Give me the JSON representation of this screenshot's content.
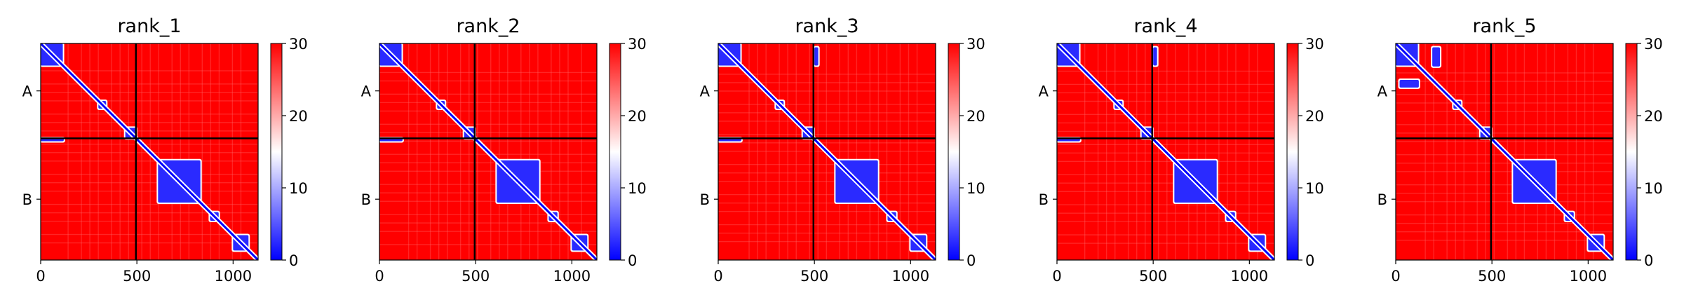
{
  "colors": {
    "low": "#0000ff",
    "mid": "#ffffff",
    "high": "#ff0000",
    "divider": "#000000"
  },
  "chart_data": [
    {
      "type": "heatmap",
      "title": "rank_1",
      "xlabel": "",
      "ylabel": "",
      "xlim": [
        0,
        1130
      ],
      "ylim": [
        1130,
        0
      ],
      "x_ticks": [
        "0",
        "500",
        "1000"
      ],
      "y_tick_labels": [
        "A",
        "B"
      ],
      "chains": [
        {
          "name": "A",
          "start": 0,
          "end": 495
        },
        {
          "name": "B",
          "start": 495,
          "end": 1130
        }
      ],
      "colorbar": {
        "min": 0,
        "max": 30,
        "ticks": [
          "0",
          "10",
          "20",
          "30"
        ]
      },
      "low_blocks": [
        {
          "x": [
            0,
            115
          ],
          "y": [
            0,
            115
          ]
        },
        {
          "x": [
            300,
            340
          ],
          "y": [
            300,
            340
          ]
        },
        {
          "x": [
            440,
            495
          ],
          "y": [
            440,
            495
          ]
        },
        {
          "x": [
            0,
            120
          ],
          "y": [
            495,
            510
          ]
        },
        {
          "x": [
            610,
            830
          ],
          "y": [
            610,
            830
          ]
        },
        {
          "x": [
            880,
            925
          ],
          "y": [
            880,
            925
          ]
        },
        {
          "x": [
            1000,
            1080
          ],
          "y": [
            1000,
            1080
          ]
        }
      ]
    },
    {
      "type": "heatmap",
      "title": "rank_2",
      "xlabel": "",
      "ylabel": "",
      "xlim": [
        0,
        1130
      ],
      "ylim": [
        1130,
        0
      ],
      "x_ticks": [
        "0",
        "500",
        "1000"
      ],
      "y_tick_labels": [
        "A",
        "B"
      ],
      "chains": [
        {
          "name": "A",
          "start": 0,
          "end": 495
        },
        {
          "name": "B",
          "start": 495,
          "end": 1130
        }
      ],
      "colorbar": {
        "min": 0,
        "max": 30,
        "ticks": [
          "0",
          "10",
          "20",
          "30"
        ]
      },
      "low_blocks": [
        {
          "x": [
            0,
            115
          ],
          "y": [
            0,
            115
          ]
        },
        {
          "x": [
            300,
            340
          ],
          "y": [
            300,
            340
          ]
        },
        {
          "x": [
            440,
            495
          ],
          "y": [
            440,
            495
          ]
        },
        {
          "x": [
            0,
            120
          ],
          "y": [
            495,
            510
          ]
        },
        {
          "x": [
            610,
            830
          ],
          "y": [
            610,
            830
          ]
        },
        {
          "x": [
            880,
            925
          ],
          "y": [
            880,
            925
          ]
        },
        {
          "x": [
            1000,
            1080
          ],
          "y": [
            1000,
            1080
          ]
        }
      ]
    },
    {
      "type": "heatmap",
      "title": "rank_3",
      "xlabel": "",
      "ylabel": "",
      "xlim": [
        0,
        1130
      ],
      "ylim": [
        1130,
        0
      ],
      "x_ticks": [
        "0",
        "500",
        "1000"
      ],
      "y_tick_labels": [
        "A",
        "B"
      ],
      "chains": [
        {
          "name": "A",
          "start": 0,
          "end": 495
        },
        {
          "name": "B",
          "start": 495,
          "end": 1130
        }
      ],
      "colorbar": {
        "min": 0,
        "max": 30,
        "ticks": [
          "0",
          "10",
          "20",
          "30"
        ]
      },
      "low_blocks": [
        {
          "x": [
            0,
            115
          ],
          "y": [
            0,
            115
          ]
        },
        {
          "x": [
            300,
            340
          ],
          "y": [
            300,
            340
          ]
        },
        {
          "x": [
            440,
            495
          ],
          "y": [
            440,
            495
          ]
        },
        {
          "x": [
            0,
            120
          ],
          "y": [
            495,
            510
          ]
        },
        {
          "x": [
            500,
            520
          ],
          "y": [
            20,
            115
          ]
        },
        {
          "x": [
            610,
            830
          ],
          "y": [
            610,
            830
          ]
        },
        {
          "x": [
            880,
            925
          ],
          "y": [
            880,
            925
          ]
        },
        {
          "x": [
            1000,
            1080
          ],
          "y": [
            1000,
            1080
          ]
        }
      ]
    },
    {
      "type": "heatmap",
      "title": "rank_4",
      "xlabel": "",
      "ylabel": "",
      "xlim": [
        0,
        1130
      ],
      "ylim": [
        1130,
        0
      ],
      "x_ticks": [
        "0",
        "500",
        "1000"
      ],
      "y_tick_labels": [
        "A",
        "B"
      ],
      "chains": [
        {
          "name": "A",
          "start": 0,
          "end": 495
        },
        {
          "name": "B",
          "start": 495,
          "end": 1130
        }
      ],
      "colorbar": {
        "min": 0,
        "max": 30,
        "ticks": [
          "0",
          "10",
          "20",
          "30"
        ]
      },
      "low_blocks": [
        {
          "x": [
            0,
            115
          ],
          "y": [
            0,
            115
          ]
        },
        {
          "x": [
            300,
            340
          ],
          "y": [
            300,
            340
          ]
        },
        {
          "x": [
            440,
            495
          ],
          "y": [
            440,
            495
          ]
        },
        {
          "x": [
            0,
            120
          ],
          "y": [
            495,
            510
          ]
        },
        {
          "x": [
            500,
            520
          ],
          "y": [
            20,
            115
          ]
        },
        {
          "x": [
            610,
            830
          ],
          "y": [
            610,
            830
          ]
        },
        {
          "x": [
            880,
            925
          ],
          "y": [
            880,
            925
          ]
        },
        {
          "x": [
            1000,
            1080
          ],
          "y": [
            1000,
            1080
          ]
        }
      ]
    },
    {
      "type": "heatmap",
      "title": "rank_5",
      "xlabel": "",
      "ylabel": "",
      "xlim": [
        0,
        1130
      ],
      "ylim": [
        1130,
        0
      ],
      "x_ticks": [
        "0",
        "500",
        "1000"
      ],
      "y_tick_labels": [
        "A",
        "B"
      ],
      "chains": [
        {
          "name": "A",
          "start": 0,
          "end": 495
        },
        {
          "name": "B",
          "start": 495,
          "end": 1130
        }
      ],
      "colorbar": {
        "min": 0,
        "max": 30,
        "ticks": [
          "0",
          "10",
          "20",
          "30"
        ]
      },
      "low_blocks": [
        {
          "x": [
            0,
            115
          ],
          "y": [
            0,
            115
          ]
        },
        {
          "x": [
            190,
            230
          ],
          "y": [
            20,
            120
          ]
        },
        {
          "x": [
            20,
            120
          ],
          "y": [
            190,
            230
          ]
        },
        {
          "x": [
            300,
            340
          ],
          "y": [
            300,
            340
          ]
        },
        {
          "x": [
            440,
            495
          ],
          "y": [
            440,
            495
          ]
        },
        {
          "x": [
            610,
            830
          ],
          "y": [
            610,
            830
          ]
        },
        {
          "x": [
            880,
            925
          ],
          "y": [
            880,
            925
          ]
        },
        {
          "x": [
            1000,
            1080
          ],
          "y": [
            1000,
            1080
          ]
        }
      ]
    }
  ]
}
